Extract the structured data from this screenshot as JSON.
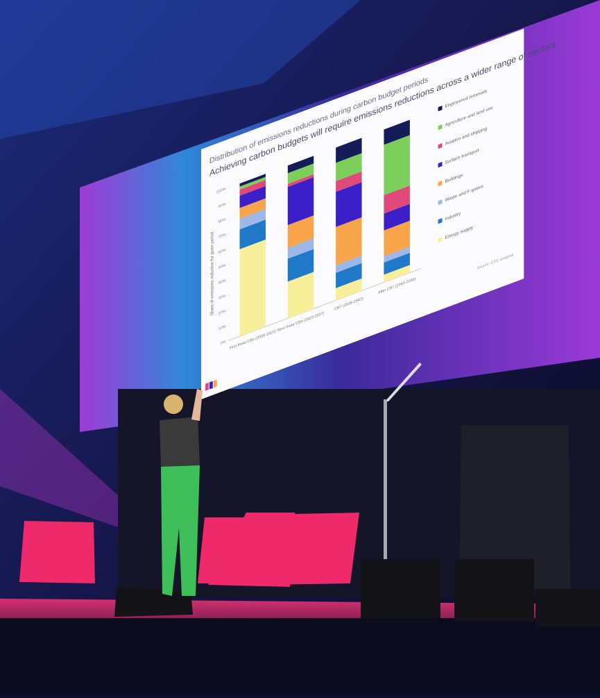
{
  "chart_data": {
    "type": "stacked-bar",
    "title": "Distribution of emissions reductions during carbon budget periods",
    "subtitle": "Achieving carbon budgets will require emissions reductions across a wider range of sectors",
    "y_label": "Share of emissions reduction for given period",
    "source": "Source: CCC analysis",
    "categories": [
      "First three CBs (2008-2022)",
      "Next three CBs (2023-2037)",
      "CB7 (2038-2042)",
      "After CB7 (2043-2050)"
    ],
    "ylim": [
      0,
      100
    ],
    "yticks": [
      {
        "value": 0,
        "label": "0%"
      },
      {
        "value": 10,
        "label": "10%"
      },
      {
        "value": 20,
        "label": "20%"
      },
      {
        "value": 30,
        "label": "30%"
      },
      {
        "value": 40,
        "label": "40%"
      },
      {
        "value": 50,
        "label": "50%"
      },
      {
        "value": 60,
        "label": "60%"
      },
      {
        "value": 70,
        "label": "70%"
      },
      {
        "value": 80,
        "label": "80%"
      },
      {
        "value": 90,
        "label": "90%"
      },
      {
        "value": 100,
        "label": "100%"
      }
    ],
    "series": [
      {
        "name": "Energy supply",
        "color": "#f7ef9a",
        "values": [
          57,
          24,
          8,
          5
        ]
      },
      {
        "name": "Industry",
        "color": "#1f78c8",
        "values": [
          13,
          15,
          10,
          8
        ]
      },
      {
        "name": "Waste and F-gases",
        "color": "#9db8e6",
        "values": [
          7,
          7,
          5,
          4
        ]
      },
      {
        "name": "Buildings",
        "color": "#f7a44a",
        "values": [
          7,
          15,
          25,
          17
        ]
      },
      {
        "name": "Surface transport",
        "color": "#3b1fc9",
        "values": [
          8,
          25,
          23,
          11
        ]
      },
      {
        "name": "Aviation and shipping",
        "color": "#e04a7a",
        "values": [
          4,
          2,
          7,
          12
        ]
      },
      {
        "name": "Agriculture and land use",
        "color": "#7ccf5a",
        "values": [
          2,
          7,
          12,
          33
        ]
      },
      {
        "name": "Engineered removals",
        "color": "#141c5a",
        "values": [
          2,
          5,
          10,
          10
        ]
      }
    ]
  }
}
